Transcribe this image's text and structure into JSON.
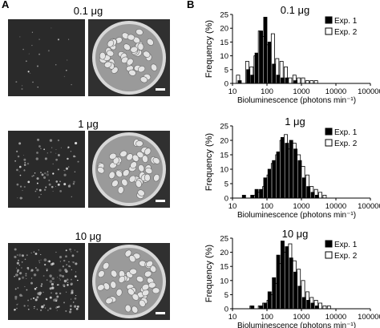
{
  "panels": {
    "a": "A",
    "b": "B"
  },
  "rows": [
    {
      "dose": "0.1 μg"
    },
    {
      "dose": "1 μg"
    },
    {
      "dose": "10 μg"
    }
  ],
  "colors": {
    "exp1": "#000000",
    "exp2": "#ffffff",
    "axis": "#000000"
  },
  "chart_data": [
    {
      "type": "bar",
      "title": "0.1 μg",
      "xlabel": "Bioluminescence (photons min⁻¹)",
      "ylabel": "Frequency (%)",
      "x_scale": "log",
      "xlim": [
        10,
        100000
      ],
      "ylim": [
        0,
        25
      ],
      "yticks": [
        0,
        5,
        10,
        15,
        20,
        25
      ],
      "xticks": [
        "10",
        "100",
        "1000",
        "10000",
        "100000"
      ],
      "bin_centers": [
        13,
        18,
        24,
        32,
        42,
        56,
        75,
        100,
        133,
        178,
        237,
        316,
        422,
        562,
        750,
        1000,
        1334,
        1778,
        2371,
        3162
      ],
      "series": [
        {
          "name": "Exp. 1",
          "values": [
            0,
            1,
            0,
            5,
            3,
            11,
            19,
            24,
            15,
            7,
            3,
            2,
            2,
            0,
            1,
            0,
            0,
            0,
            0,
            0
          ]
        },
        {
          "name": "Exp. 2",
          "values": [
            3,
            0,
            8,
            6,
            10,
            19,
            17,
            14,
            18,
            9,
            8,
            6,
            2,
            3,
            2,
            2,
            1,
            1,
            1,
            0
          ]
        }
      ],
      "legend": "top-right"
    },
    {
      "type": "bar",
      "title": "1 μg",
      "xlabel": "Bioluminescence (photons min⁻¹)",
      "ylabel": "Frequency (%)",
      "x_scale": "log",
      "xlim": [
        10,
        100000
      ],
      "ylim": [
        0,
        25
      ],
      "yticks": [
        0,
        5,
        10,
        15,
        20,
        25
      ],
      "xticks": [
        "10",
        "100",
        "1000",
        "10000",
        "100000"
      ],
      "bin_centers": [
        24,
        32,
        42,
        56,
        75,
        100,
        133,
        178,
        237,
        316,
        422,
        562,
        750,
        1000,
        1334,
        1778,
        2371,
        3162,
        4217
      ],
      "series": [
        {
          "name": "Exp. 1",
          "values": [
            1,
            0,
            1,
            3,
            3,
            7,
            10,
            13,
            16,
            21,
            19,
            20,
            17,
            13,
            7,
            4,
            2,
            1,
            0
          ]
        },
        {
          "name": "Exp. 2",
          "values": [
            0,
            0,
            1,
            2,
            4,
            8,
            12,
            15,
            20,
            22,
            17,
            19,
            15,
            11,
            8,
            4,
            3,
            2,
            1
          ]
        }
      ],
      "legend": "top-right"
    },
    {
      "type": "bar",
      "title": "10 μg",
      "xlabel": "Bioluminescence (photons min⁻¹)",
      "ylabel": "Frequency (%)",
      "x_scale": "log",
      "xlim": [
        10,
        100000
      ],
      "ylim": [
        0,
        25
      ],
      "yticks": [
        0,
        5,
        10,
        15,
        20,
        25
      ],
      "xticks": [
        "10",
        "100",
        "1000",
        "10000",
        "100000"
      ],
      "bin_centers": [
        32,
        42,
        56,
        75,
        100,
        133,
        178,
        237,
        316,
        422,
        562,
        750,
        1000,
        1334,
        1778,
        2371,
        3162,
        4217,
        5623
      ],
      "series": [
        {
          "name": "Exp. 1",
          "values": [
            0,
            1,
            0,
            1,
            2,
            6,
            11,
            19,
            24,
            22,
            18,
            13,
            8,
            4,
            3,
            2,
            1,
            0,
            0
          ]
        },
        {
          "name": "Exp. 2",
          "values": [
            1,
            0,
            1,
            2,
            3,
            5,
            9,
            16,
            20,
            23,
            17,
            14,
            10,
            6,
            4,
            3,
            2,
            1,
            1
          ]
        }
      ],
      "legend": "top-right"
    }
  ]
}
